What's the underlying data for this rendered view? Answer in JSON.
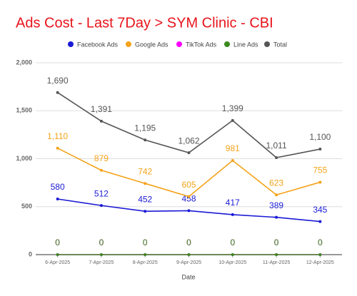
{
  "chart_data": {
    "type": "line",
    "title": "Ads Cost - Last 7Day > SYM Clinic - CBI",
    "xlabel": "Date",
    "categories": [
      "6-Apr-2025",
      "7-Apr-2025",
      "8-Apr-2025",
      "9-Apr-2025",
      "10-Apr-2025",
      "11-Apr-2025",
      "12-Apr-2025"
    ],
    "series": [
      {
        "name": "Facebook Ads",
        "color": "#1a1ad6",
        "values": [
          580,
          512,
          452,
          458,
          417,
          389,
          345
        ]
      },
      {
        "name": "Google Ads",
        "color": "#f4a31a",
        "values": [
          1110,
          879,
          742,
          605,
          981,
          623,
          755
        ],
        "value_labels": [
          "1,110",
          "879",
          "742",
          "605",
          "981",
          "623",
          "755"
        ]
      },
      {
        "name": "TikTok Ads",
        "color": "#ff00ff",
        "values": [
          0,
          0,
          0,
          0,
          0,
          0,
          0
        ]
      },
      {
        "name": "Line Ads",
        "color": "#3a8a1f",
        "values": [
          0,
          0,
          0,
          0,
          0,
          0,
          0
        ]
      },
      {
        "name": "Total",
        "color": "#555555",
        "values": [
          1690,
          1391,
          1195,
          1062,
          1399,
          1011,
          1100
        ],
        "value_labels": [
          "1,690",
          "1,391",
          "1,195",
          "1,062",
          "1,399",
          "1,011",
          "1,100"
        ]
      }
    ],
    "ylim": [
      0,
      2000
    ],
    "yticks": [
      0,
      500,
      {
        "value": 1000,
        "label": "1,000"
      },
      {
        "value": 1500,
        "label": "1,500"
      },
      {
        "value": 2000,
        "label": "2,000"
      }
    ],
    "grid": true,
    "legend": "top"
  }
}
